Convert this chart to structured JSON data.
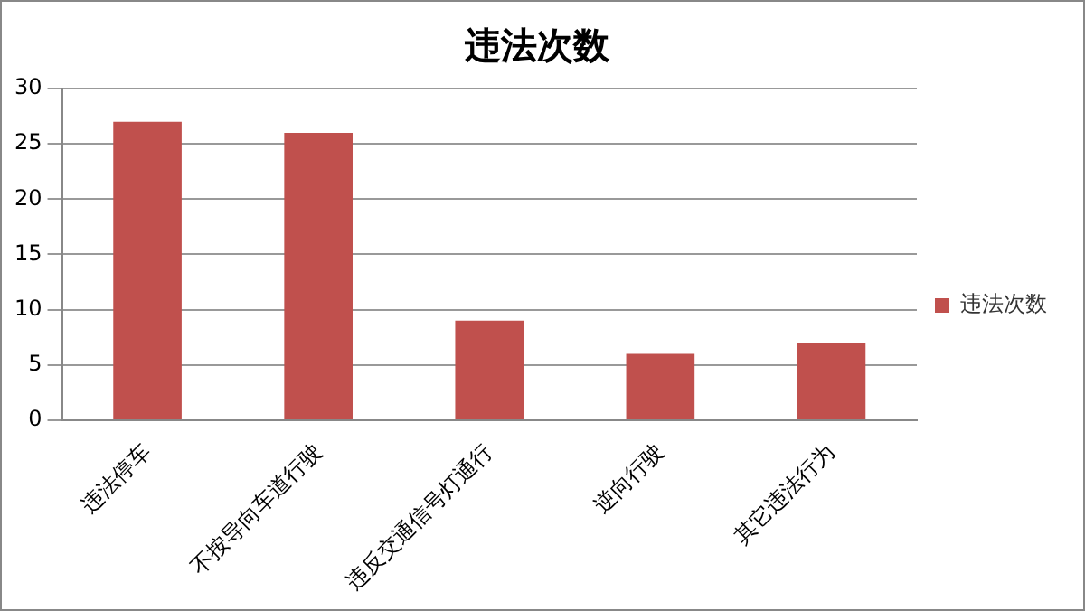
{
  "chart_data": {
    "type": "bar",
    "title": "违法次数",
    "categories": [
      "违法停车",
      "不按导向车道行驶",
      "违反交通信号灯通行",
      "逆向行驶",
      "其它违法行为"
    ],
    "series": [
      {
        "name": "违法次数",
        "color": "#c0504d",
        "values": [
          27,
          26,
          9,
          6,
          7
        ]
      }
    ],
    "ylim": [
      0,
      30
    ],
    "yticks": [
      0,
      5,
      10,
      15,
      20,
      25,
      30
    ],
    "grid": "y",
    "legend": "right"
  }
}
